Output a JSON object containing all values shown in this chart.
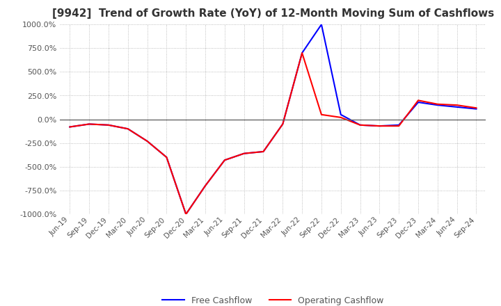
{
  "title": "[9942]  Trend of Growth Rate (YoY) of 12-Month Moving Sum of Cashflows",
  "title_fontsize": 11,
  "ylim": [
    -1000,
    1000
  ],
  "yticks": [
    1000,
    750,
    500,
    250,
    0,
    -250,
    -500,
    -750,
    -1000
  ],
  "background_color": "#ffffff",
  "plot_bg_color": "#ffffff",
  "grid_color": "#aaaaaa",
  "x_labels": [
    "Jun-19",
    "Sep-19",
    "Dec-19",
    "Mar-20",
    "Jun-20",
    "Sep-20",
    "Dec-20",
    "Mar-21",
    "Jun-21",
    "Sep-21",
    "Dec-21",
    "Mar-22",
    "Jun-22",
    "Sep-22",
    "Dec-22",
    "Mar-23",
    "Jun-23",
    "Sep-23",
    "Dec-23",
    "Mar-24",
    "Jun-24",
    "Sep-24"
  ],
  "operating_cashflow": [
    -80,
    -50,
    -60,
    -100,
    -230,
    -400,
    -1000,
    -700,
    -430,
    -360,
    -340,
    -50,
    700,
    50,
    20,
    -60,
    -70,
    -70,
    200,
    160,
    150,
    120
  ],
  "free_cashflow": [
    -80,
    -50,
    -60,
    -100,
    -230,
    -400,
    -1000,
    -700,
    -430,
    -360,
    -340,
    -50,
    700,
    1000,
    50,
    -60,
    -70,
    -60,
    180,
    150,
    130,
    110
  ],
  "op_color": "#ff0000",
  "fc_color": "#0000ff",
  "line_width": 1.5
}
